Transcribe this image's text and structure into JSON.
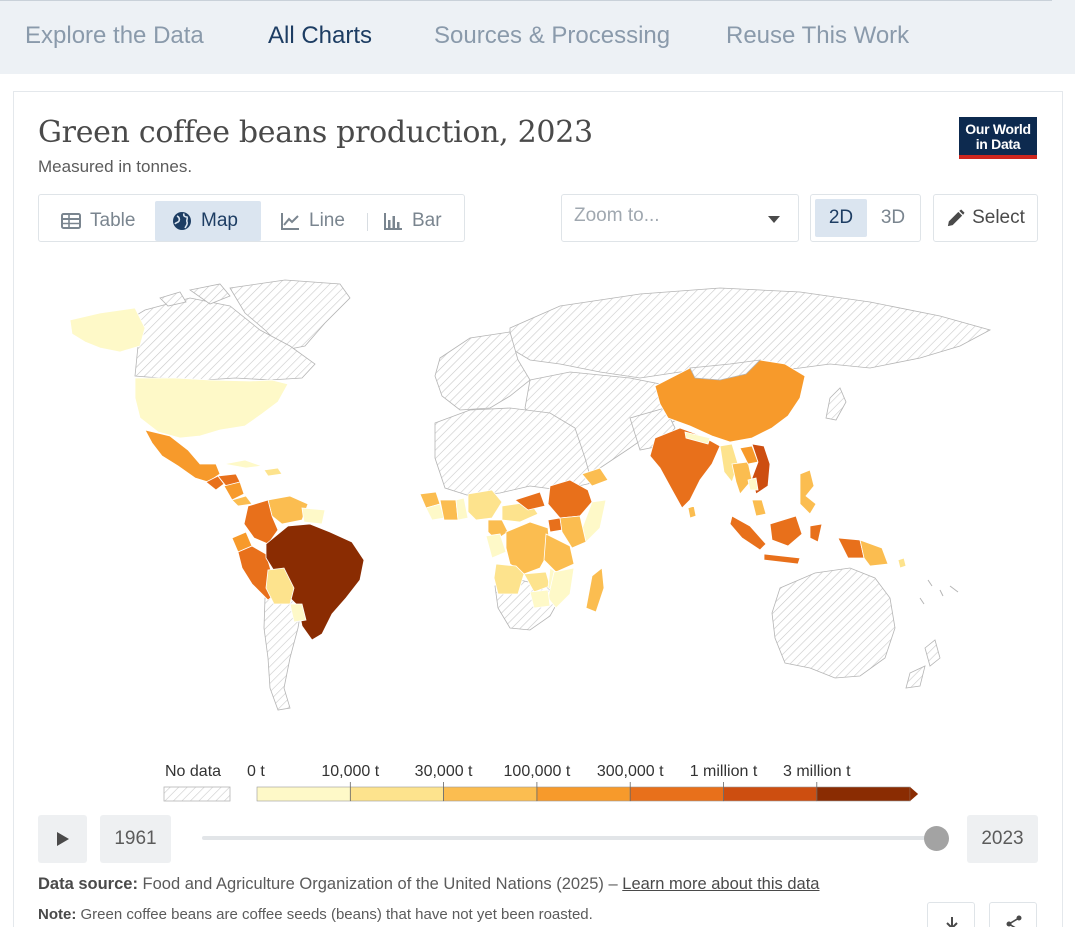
{
  "nav": {
    "tabs": [
      {
        "label": "Explore the Data",
        "active": false
      },
      {
        "label": "All Charts",
        "active": true
      },
      {
        "label": "Sources & Processing",
        "active": false
      },
      {
        "label": "Reuse This Work",
        "active": false
      }
    ]
  },
  "chart": {
    "title": "Green coffee beans production, 2023",
    "subtitle": "Measured in tonnes.",
    "logo_line1": "Our World",
    "logo_line2": "in Data"
  },
  "view_tabs": [
    {
      "label": "Table",
      "icon": "table-icon",
      "active": false
    },
    {
      "label": "Map",
      "icon": "globe-icon",
      "active": true
    },
    {
      "label": "Line",
      "icon": "line-chart-icon",
      "active": false
    },
    {
      "label": "Bar",
      "icon": "bar-chart-icon",
      "active": false
    }
  ],
  "zoom": {
    "placeholder": "Zoom to..."
  },
  "dimensions": [
    {
      "label": "2D",
      "active": true
    },
    {
      "label": "3D",
      "active": false
    }
  ],
  "select_label": "Select",
  "legend": {
    "no_data_label": "No data",
    "bins": [
      "0 t",
      "10,000 t",
      "30,000 t",
      "100,000 t",
      "300,000 t",
      "1 million t",
      "3 million t"
    ],
    "colors": [
      "#fef9c8",
      "#fde38d",
      "#fbbd50",
      "#f79a2b",
      "#e8701b",
      "#cd4e10",
      "#8a2c02"
    ]
  },
  "chart_data": {
    "type": "choropleth",
    "year": 2023,
    "units": "tonnes",
    "no_data_pattern": "hatched",
    "bin_edges": [
      0,
      10000,
      30000,
      100000,
      300000,
      1000000,
      3000000
    ],
    "regions": [
      {
        "name": "Brazil",
        "bin": 6
      },
      {
        "name": "Vietnam",
        "bin": 5
      },
      {
        "name": "Colombia",
        "bin": 4
      },
      {
        "name": "Indonesia",
        "bin": 4
      },
      {
        "name": "Ethiopia",
        "bin": 4
      },
      {
        "name": "Uganda",
        "bin": 4
      },
      {
        "name": "India",
        "bin": 4
      },
      {
        "name": "Honduras",
        "bin": 4
      },
      {
        "name": "Peru",
        "bin": 4
      },
      {
        "name": "Mexico",
        "bin": 3
      },
      {
        "name": "China",
        "bin": 3
      },
      {
        "name": "Guatemala",
        "bin": 3
      },
      {
        "name": "Laos",
        "bin": 3
      },
      {
        "name": "Tanzania",
        "bin": 2
      },
      {
        "name": "Kenya",
        "bin": 2
      },
      {
        "name": "Madagascar",
        "bin": 2
      },
      {
        "name": "Cote d'Ivoire",
        "bin": 2
      },
      {
        "name": "Philippines",
        "bin": 2
      },
      {
        "name": "Papua New Guinea",
        "bin": 2
      },
      {
        "name": "Venezuela",
        "bin": 2
      },
      {
        "name": "Ecuador",
        "bin": 2
      },
      {
        "name": "Democratic Republic of Congo",
        "bin": 2
      },
      {
        "name": "Cameroon",
        "bin": 2
      },
      {
        "name": "Yemen",
        "bin": 2
      },
      {
        "name": "Thailand",
        "bin": 2
      },
      {
        "name": "Bolivia",
        "bin": 1
      },
      {
        "name": "Angola",
        "bin": 1
      },
      {
        "name": "Zambia",
        "bin": 1
      },
      {
        "name": "Nigeria",
        "bin": 1
      },
      {
        "name": "Central African Republic",
        "bin": 1
      },
      {
        "name": "Myanmar",
        "bin": 1
      },
      {
        "name": "United States",
        "bin": 0
      },
      {
        "name": "Paraguay",
        "bin": 0
      },
      {
        "name": "Malawi",
        "bin": 0
      },
      {
        "name": "Mozambique",
        "bin": 0
      },
      {
        "name": "Zimbabwe",
        "bin": 0
      },
      {
        "name": "Ghana",
        "bin": 0
      },
      {
        "name": "Cuba",
        "bin": 0
      }
    ]
  },
  "timeline": {
    "start_year": "1961",
    "end_year": "2023",
    "progress": 1.0
  },
  "footer": {
    "source_label": "Data source:",
    "source_text": "Food and Agriculture Organization of the United Nations (2025) –",
    "source_link": "Learn more about this data",
    "note_label": "Note:",
    "note_text": "Green coffee beans are coffee seeds (beans) that have not yet been roasted."
  }
}
